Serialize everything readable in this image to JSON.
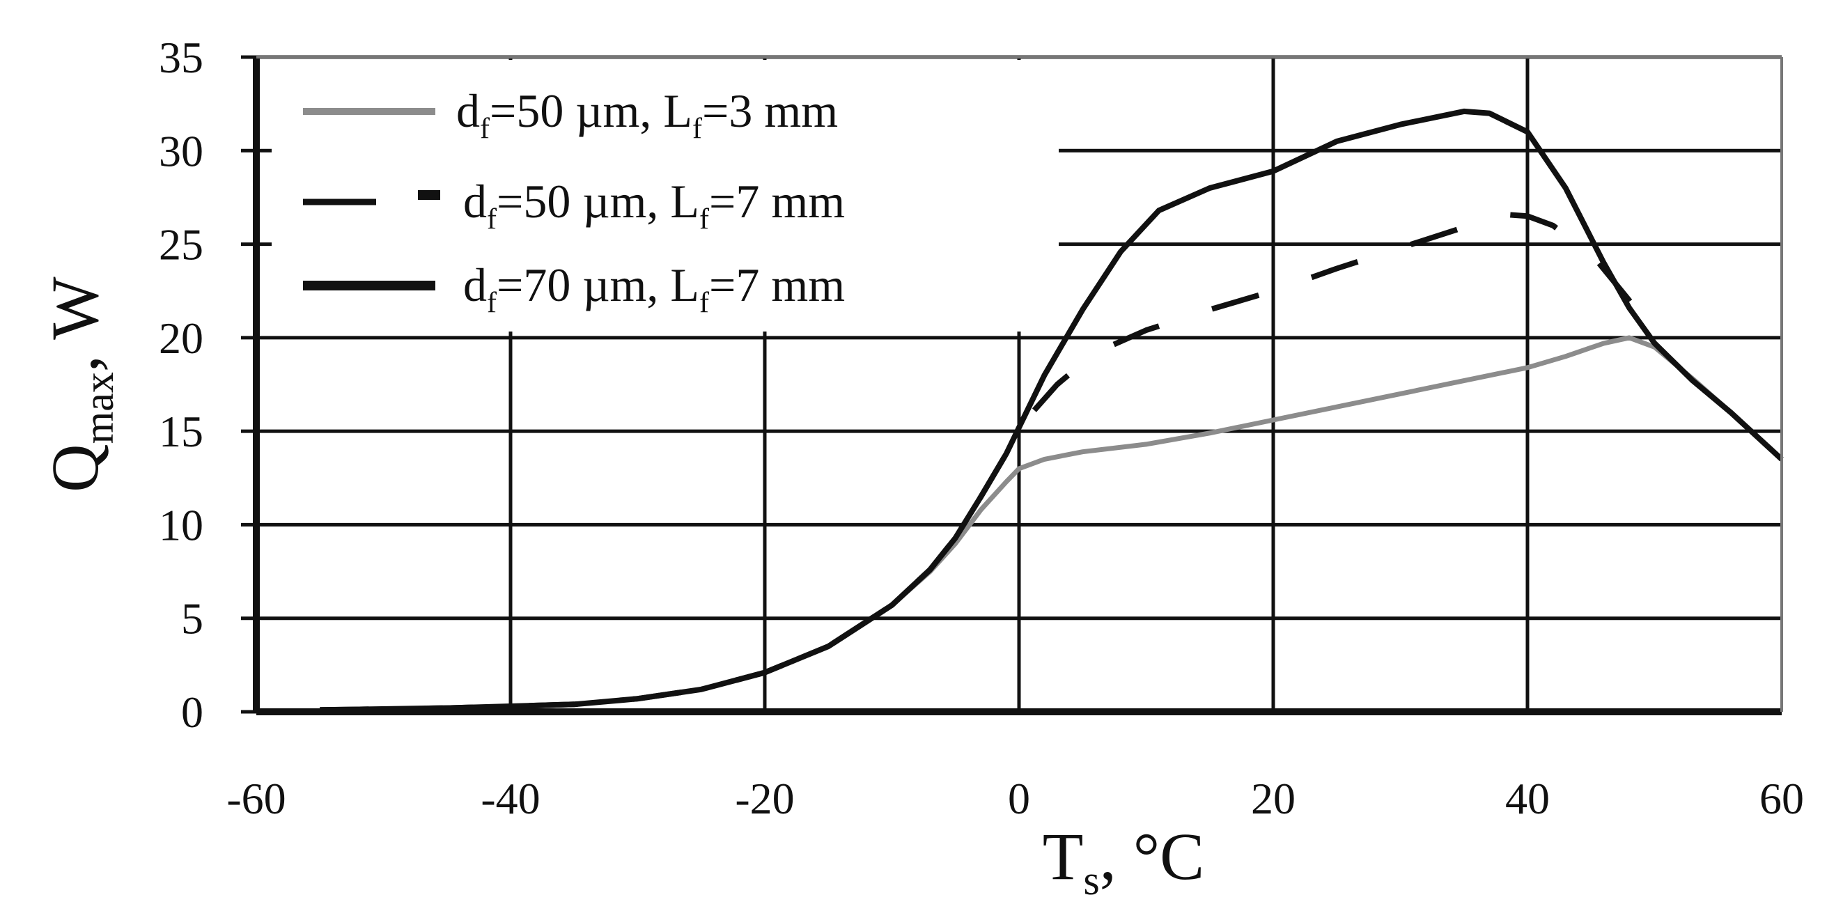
{
  "chart_data": {
    "type": "line",
    "xlabel": {
      "main": "T",
      "sub": "s",
      "unit": ", °C"
    },
    "ylabel": {
      "main": "Q",
      "sub": "max",
      "unit": ", W"
    },
    "xlim": [
      -60,
      60
    ],
    "ylim": [
      0,
      35
    ],
    "xticks": [
      -60,
      -40,
      -20,
      0,
      20,
      40,
      60
    ],
    "yticks": [
      0,
      5,
      10,
      15,
      20,
      25,
      30,
      35
    ],
    "grid": true,
    "legend_position": "top-left",
    "series": [
      {
        "name": "d_f=50 µm, L_f=3  mm",
        "label_parts": [
          "d",
          "f",
          "=50 µm, L",
          "f",
          "=3  mm"
        ],
        "color": "#8c8c8c",
        "dash": "solid",
        "x": [
          -55,
          -45,
          -35,
          -30,
          -25,
          -20,
          -15,
          -10,
          -7,
          -5,
          -3,
          -1,
          0,
          2,
          5,
          10,
          15,
          20,
          25,
          30,
          35,
          40,
          43,
          46,
          48,
          50,
          53,
          56,
          60
        ],
        "y": [
          0.1,
          0.2,
          0.4,
          0.7,
          1.2,
          2.1,
          3.5,
          5.7,
          7.5,
          9.0,
          10.8,
          12.3,
          13.0,
          13.5,
          13.9,
          14.3,
          14.9,
          15.6,
          16.3,
          17.0,
          17.7,
          18.4,
          19.0,
          19.7,
          20.0,
          19.5,
          17.8,
          16.0,
          13.5
        ]
      },
      {
        "name": "d_f=50 µm, L_f=7 mm",
        "label_parts": [
          "d",
          "f",
          "=50 µm, L",
          "f",
          "=7 mm"
        ],
        "color": "#111111",
        "dash": "dashed",
        "x": [
          -55,
          -45,
          -35,
          -30,
          -25,
          -20,
          -15,
          -10,
          -7,
          -5,
          -3,
          -1,
          0,
          3,
          6,
          10,
          15,
          20,
          25,
          30,
          35,
          38,
          40,
          42,
          45,
          48,
          50
        ],
        "y": [
          0.1,
          0.2,
          0.4,
          0.7,
          1.2,
          2.1,
          3.5,
          5.7,
          7.6,
          9.3,
          11.5,
          13.8,
          15.2,
          17.5,
          19.2,
          20.4,
          21.5,
          22.5,
          23.7,
          24.8,
          25.9,
          26.6,
          26.5,
          26.0,
          24.5,
          22.0,
          20.2
        ]
      },
      {
        "name": "d_f=70 µm, L_f=7 mm",
        "label_parts": [
          "d",
          "f",
          "=70 µm, L",
          "f",
          "=7 mm"
        ],
        "color": "#111111",
        "dash": "solid",
        "x": [
          -55,
          -45,
          -35,
          -30,
          -25,
          -20,
          -15,
          -10,
          -7,
          -5,
          -3,
          -1,
          0,
          2,
          5,
          8,
          11,
          15,
          20,
          25,
          30,
          35,
          37,
          40,
          43,
          46,
          48,
          50,
          53,
          56,
          60
        ],
        "y": [
          0.1,
          0.2,
          0.4,
          0.7,
          1.2,
          2.1,
          3.5,
          5.7,
          7.6,
          9.3,
          11.5,
          13.8,
          15.2,
          18.0,
          21.5,
          24.6,
          26.8,
          28.0,
          28.9,
          30.5,
          31.4,
          32.1,
          32.0,
          31.0,
          28.0,
          24.0,
          21.6,
          19.7,
          17.7,
          16.0,
          13.5
        ]
      }
    ]
  }
}
